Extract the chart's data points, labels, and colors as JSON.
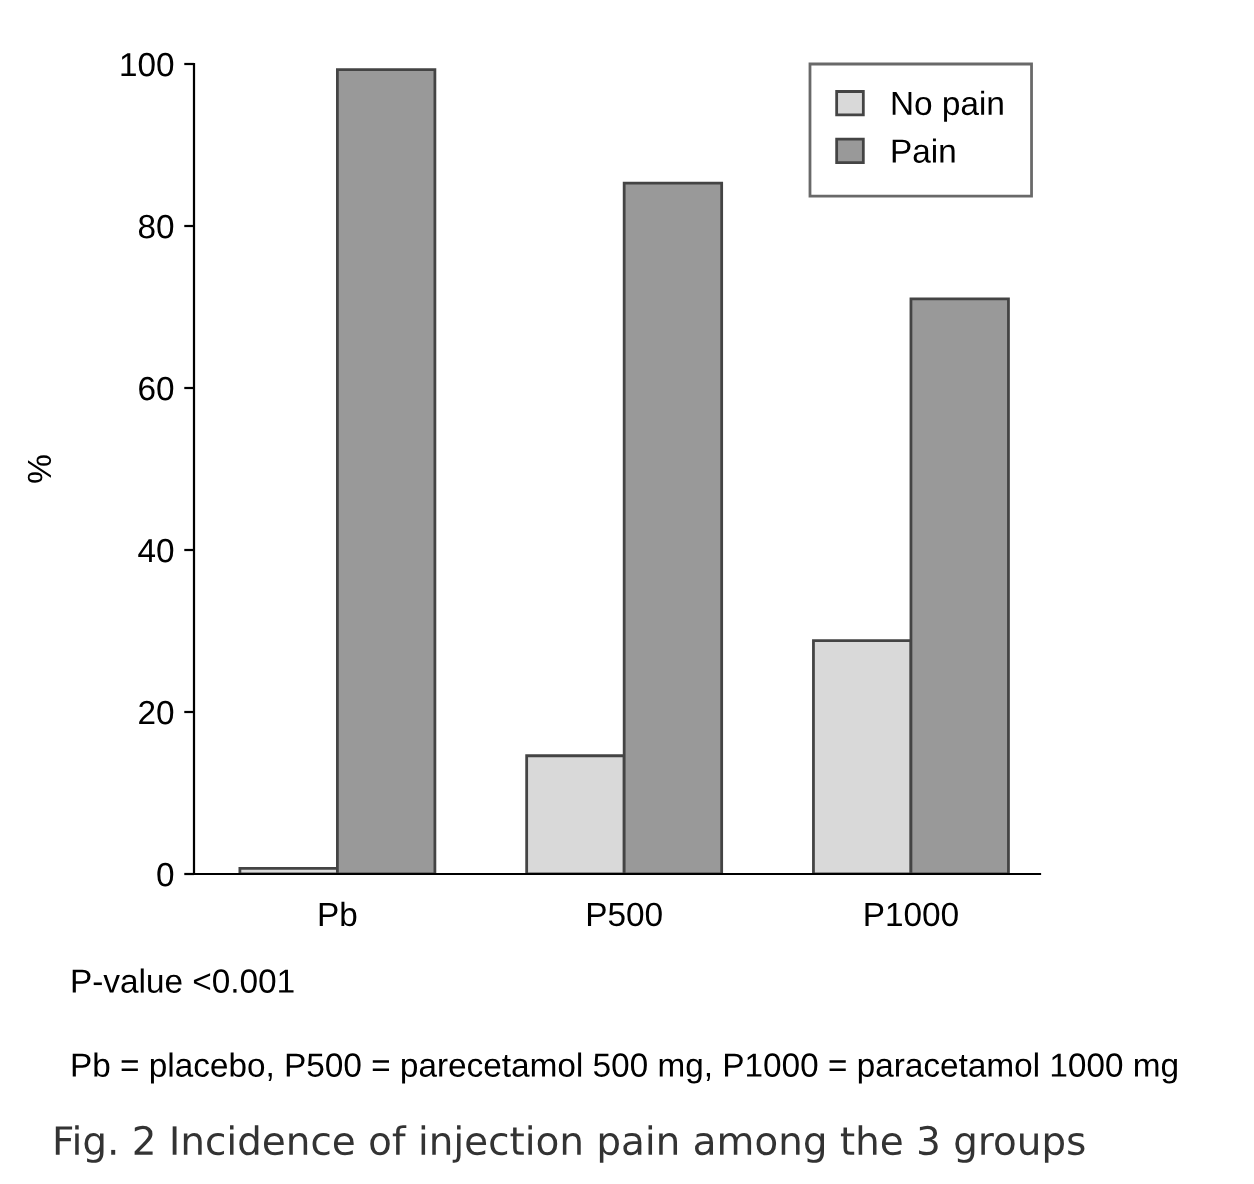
{
  "chart_data": {
    "type": "bar",
    "ylabel": "%",
    "categories": [
      "Pb",
      "P500",
      "P1000"
    ],
    "series": [
      {
        "name": "No pain",
        "color": "#d9d9d9",
        "values": [
          0.7,
          14.6,
          28.8
        ]
      },
      {
        "name": "Pain",
        "color": "#999999",
        "values": [
          99.3,
          85.3,
          71.0
        ]
      }
    ],
    "ylim": [
      0,
      100
    ],
    "yticks": [
      0,
      20,
      40,
      60,
      80,
      100
    ],
    "grid": false,
    "legend": "top right",
    "annotations": [
      "P-value <0.001",
      "Pb = placebo, P500 = parecetamol 500 mg, P1000 = paracetamol 1000 mg",
      "Fig. 2 Incidence of injection pain among the 3 groups"
    ]
  }
}
